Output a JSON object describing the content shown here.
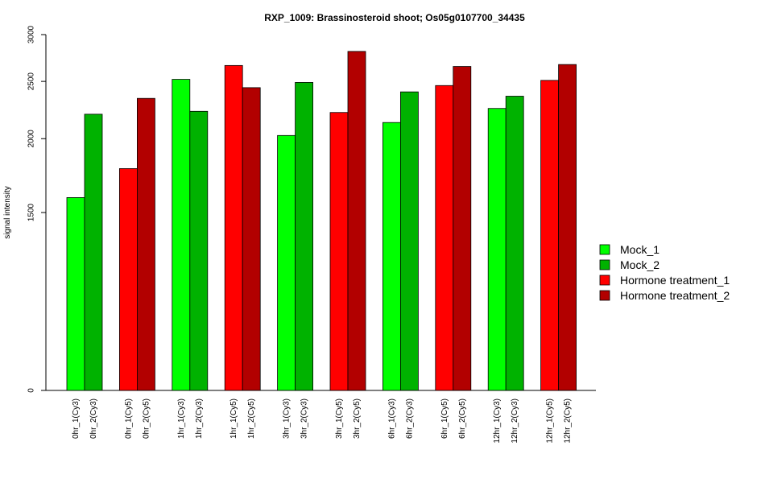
{
  "chart_data": {
    "type": "bar",
    "title": "RXP_1009: Brassinosteroid shoot; Os05g0107700_34435",
    "xlabel": "",
    "ylabel": "signal intensity",
    "yticks": [
      0,
      1500,
      2000,
      2500,
      3000
    ],
    "y_scale": "log",
    "ylim": [
      0,
      3000
    ],
    "categories": [
      "0hr_1(Cy3)",
      "0hr_2(Cy3)",
      "0hr_1(Cy5)",
      "0hr_2(Cy5)",
      "1hr_1(Cy3)",
      "1hr_2(Cy3)",
      "1hr_1(Cy5)",
      "1hr_2(Cy5)",
      "3hr_1(Cy3)",
      "3hr_2(Cy3)",
      "3hr_1(Cy5)",
      "3hr_2(Cy5)",
      "6hr_1(Cy3)",
      "6hr_2(Cy3)",
      "6hr_1(Cy5)",
      "6hr_2(Cy5)",
      "12hr_1(Cy3)",
      "12hr_2(Cy3)",
      "12hr_1(Cy5)",
      "12hr_2(Cy5)"
    ],
    "values": [
      1590,
      2200,
      1780,
      2340,
      2520,
      2225,
      2660,
      2440,
      2025,
      2490,
      2215,
      2810,
      2130,
      2400,
      2460,
      2650,
      2250,
      2360,
      2510,
      2670
    ],
    "series_index": [
      0,
      1,
      2,
      3,
      0,
      1,
      2,
      3,
      0,
      1,
      2,
      3,
      0,
      1,
      2,
      3,
      0,
      1,
      2,
      3
    ],
    "series": [
      {
        "name": "Mock_1",
        "color": "#00FF00"
      },
      {
        "name": "Mock_2",
        "color": "#00B200"
      },
      {
        "name": "Hormone treatment_1",
        "color": "#FF0000"
      },
      {
        "name": "Hormone treatment_2",
        "color": "#B20000"
      }
    ],
    "legend_position": "right",
    "grid": false
  }
}
